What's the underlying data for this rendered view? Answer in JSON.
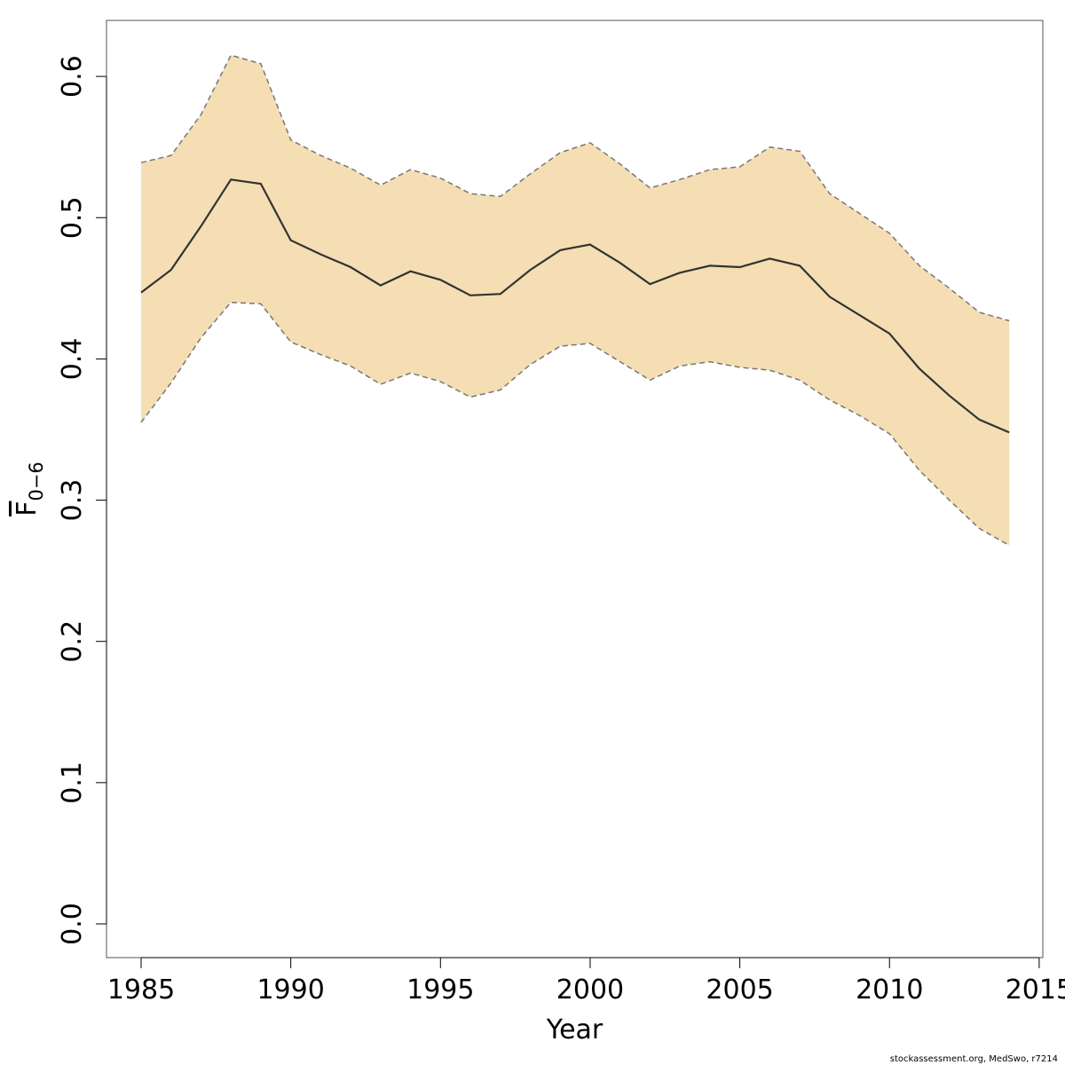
{
  "chart_data": {
    "type": "line",
    "xlabel": "Year",
    "ylabel_main": "F",
    "ylabel_sub": "0−6",
    "xlim": [
      1984,
      2015
    ],
    "ylim": [
      0,
      0.62
    ],
    "x_ticks": [
      1985,
      1990,
      1995,
      2000,
      2005,
      2010,
      2015
    ],
    "y_ticks": [
      "0.0",
      "0.1",
      "0.2",
      "0.3",
      "0.4",
      "0.5",
      "0.6"
    ],
    "grid": false,
    "band_color": "#f5deb3",
    "line_color": "#333333",
    "bound_color": "#777777",
    "x": [
      1985,
      1986,
      1987,
      1988,
      1989,
      1990,
      1991,
      1992,
      1993,
      1994,
      1995,
      1996,
      1997,
      1998,
      1999,
      2000,
      2001,
      2002,
      2003,
      2004,
      2005,
      2006,
      2007,
      2008,
      2009,
      2010,
      2011,
      2012,
      2013,
      2014
    ],
    "series": [
      {
        "values": [
          0.447,
          0.463,
          0.494,
          0.527,
          0.524,
          0.484,
          0.474,
          0.465,
          0.452,
          0.462,
          0.456,
          0.445,
          0.446,
          0.463,
          0.477,
          0.481,
          0.468,
          0.453,
          0.461,
          0.466,
          0.465,
          0.471,
          0.466,
          0.444,
          0.431,
          0.418,
          0.393,
          0.374,
          0.357,
          0.348
        ]
      },
      {
        "values": [
          0.539,
          0.544,
          0.573,
          0.615,
          0.609,
          0.555,
          0.544,
          0.535,
          0.523,
          0.534,
          0.528,
          0.517,
          0.515,
          0.531,
          0.546,
          0.553,
          0.538,
          0.521,
          0.527,
          0.534,
          0.536,
          0.55,
          0.547,
          0.517,
          0.503,
          0.489,
          0.466,
          0.45,
          0.433,
          0.427
        ]
      },
      {
        "values": [
          0.355,
          0.383,
          0.415,
          0.44,
          0.439,
          0.412,
          0.403,
          0.395,
          0.382,
          0.39,
          0.384,
          0.373,
          0.378,
          0.396,
          0.409,
          0.411,
          0.398,
          0.385,
          0.395,
          0.398,
          0.394,
          0.392,
          0.385,
          0.371,
          0.36,
          0.347,
          0.321,
          0.3,
          0.28,
          0.268
        ]
      }
    ]
  },
  "footer": "stockassessment.org, MedSwo, r7214"
}
